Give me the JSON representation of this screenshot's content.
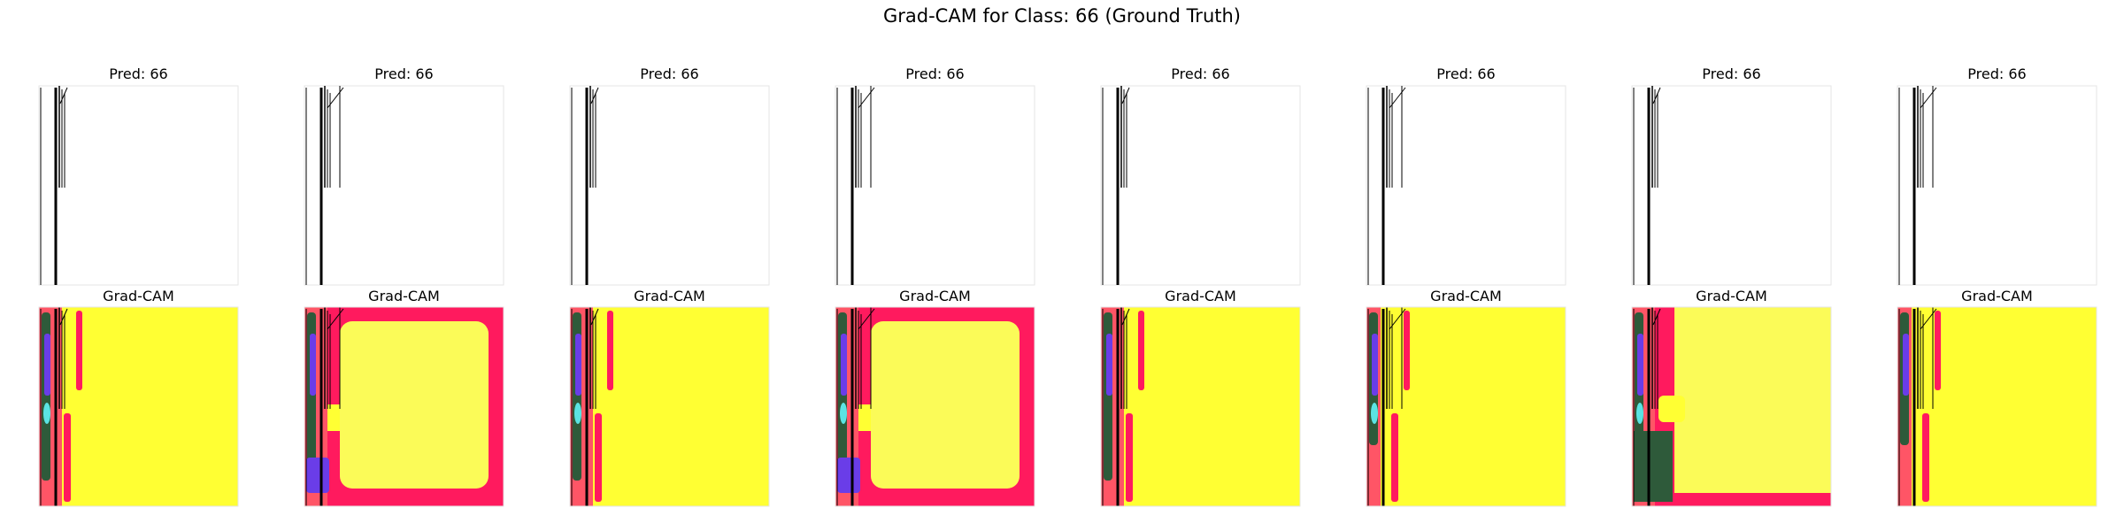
{
  "figure": {
    "title": "Grad-CAM for Class: 66 (Ground Truth)"
  },
  "chart_data": {
    "type": "image-grid",
    "title": "Grad-CAM for Class: 66 (Ground Truth)",
    "rows": 2,
    "columns": 8,
    "colors": {
      "heat_hot": "#ff1a5e",
      "heat_warm": "#ffff33",
      "heat_mid": "#ff5566",
      "heat_dark": "#2e5a3a",
      "heat_cold": "#6a3de8",
      "heat_cyan": "#5be3e3",
      "line": "#000000",
      "frame": "#e6e6e6"
    },
    "panels": [
      {
        "index": 1,
        "pred_title": "Pred: 66",
        "cam_title": "Grad-CAM",
        "pattern": "left-band"
      },
      {
        "index": 2,
        "pred_title": "Pred: 66",
        "cam_title": "Grad-CAM",
        "pattern": "frame"
      },
      {
        "index": 3,
        "pred_title": "Pred: 66",
        "cam_title": "Grad-CAM",
        "pattern": "left-band"
      },
      {
        "index": 4,
        "pred_title": "Pred: 66",
        "cam_title": "Grad-CAM",
        "pattern": "frame"
      },
      {
        "index": 5,
        "pred_title": "Pred: 66",
        "cam_title": "Grad-CAM",
        "pattern": "left-band"
      },
      {
        "index": 6,
        "pred_title": "Pred: 66",
        "cam_title": "Grad-CAM",
        "pattern": "left-band-light"
      },
      {
        "index": 7,
        "pred_title": "Pred: 66",
        "cam_title": "Grad-CAM",
        "pattern": "left-bottom"
      },
      {
        "index": 8,
        "pred_title": "Pred: 66",
        "cam_title": "Grad-CAM",
        "pattern": "left-band-light"
      }
    ]
  }
}
